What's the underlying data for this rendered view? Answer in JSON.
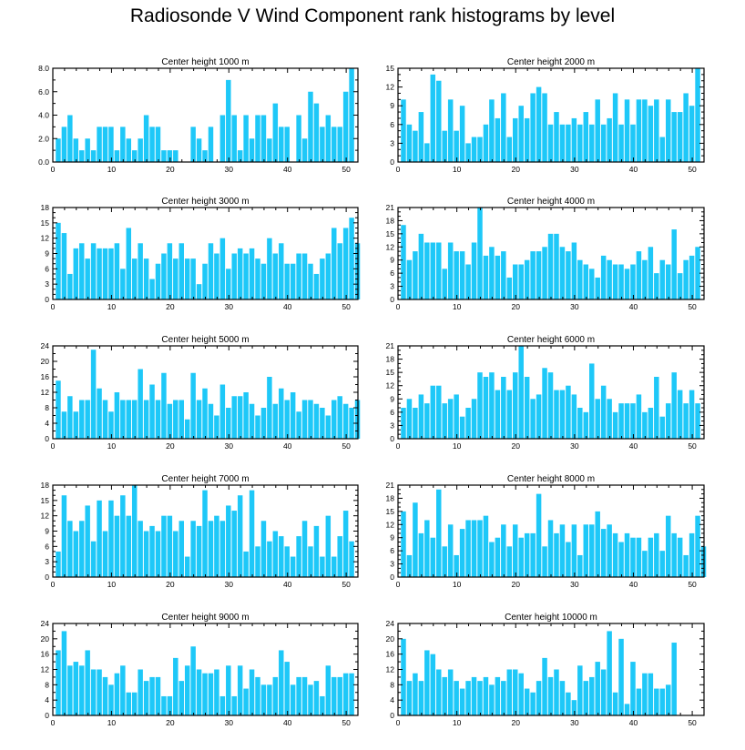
{
  "figure": {
    "title": "Radiosonde V Wind Component rank histograms by level"
  },
  "chart_data": [
    {
      "type": "bar",
      "title": "Center height 1000 m",
      "xlim": [
        0,
        52
      ],
      "ylim": [
        0,
        8
      ],
      "xticks": [
        "0",
        "10",
        "20",
        "30",
        "40",
        "50"
      ],
      "yticks": [
        "0.0",
        "2.0",
        "4.0",
        "6.0",
        "8.0"
      ],
      "ytick_values": [
        0,
        2,
        4,
        6,
        8
      ],
      "color": "#1EC8F8",
      "values": [
        2,
        3,
        4,
        2,
        1,
        2,
        1,
        3,
        3,
        3,
        1,
        3,
        2,
        1,
        2,
        4,
        3,
        3,
        1,
        1,
        1,
        0,
        0,
        3,
        2,
        1,
        3,
        0,
        4,
        7,
        4,
        1,
        4,
        2,
        4,
        4,
        2,
        5,
        3,
        3,
        0,
        4,
        2,
        6,
        5,
        3,
        4,
        3,
        3,
        6,
        8
      ]
    },
    {
      "type": "bar",
      "title": "Center height 2000 m",
      "xlim": [
        0,
        52
      ],
      "ylim": [
        0,
        15
      ],
      "xticks": [
        "0",
        "10",
        "20",
        "30",
        "40",
        "50"
      ],
      "yticks": [
        "0",
        "3",
        "6",
        "9",
        "12",
        "15"
      ],
      "ytick_values": [
        0,
        3,
        6,
        9,
        12,
        15
      ],
      "color": "#1EC8F8",
      "values": [
        10,
        6,
        5,
        8,
        3,
        14,
        13,
        5,
        10,
        5,
        9,
        3,
        4,
        4,
        6,
        10,
        7,
        11,
        4,
        7,
        9,
        7,
        11,
        12,
        11,
        6,
        8,
        6,
        6,
        7,
        6,
        8,
        6,
        10,
        6,
        7,
        11,
        6,
        10,
        6,
        10,
        10,
        9,
        10,
        4,
        10,
        8,
        8,
        11,
        9,
        15
      ]
    },
    {
      "type": "bar",
      "title": "Center height 3000 m",
      "xlim": [
        0,
        52
      ],
      "ylim": [
        0,
        18
      ],
      "xticks": [
        "0",
        "10",
        "20",
        "30",
        "40",
        "50"
      ],
      "yticks": [
        "0",
        "3",
        "6",
        "9",
        "12",
        "15",
        "18"
      ],
      "ytick_values": [
        0,
        3,
        6,
        9,
        12,
        15,
        18
      ],
      "color": "#1EC8F8",
      "values": [
        15,
        13,
        5,
        10,
        11,
        8,
        11,
        10,
        10,
        10,
        11,
        6,
        14,
        8,
        11,
        8,
        4,
        7,
        9,
        11,
        8,
        11,
        8,
        8,
        3,
        7,
        11,
        9,
        12,
        6,
        9,
        10,
        9,
        10,
        8,
        7,
        12,
        9,
        11,
        7,
        7,
        9,
        9,
        7,
        5,
        8,
        9,
        14,
        11,
        14,
        16,
        11
      ]
    },
    {
      "type": "bar",
      "title": "Center height 4000 m",
      "xlim": [
        0,
        52
      ],
      "ylim": [
        0,
        21
      ],
      "xticks": [
        "0",
        "10",
        "20",
        "30",
        "40",
        "50"
      ],
      "yticks": [
        "0",
        "3",
        "6",
        "9",
        "12",
        "15",
        "18",
        "21"
      ],
      "ytick_values": [
        0,
        3,
        6,
        9,
        12,
        15,
        18,
        21
      ],
      "color": "#1EC8F8",
      "values": [
        17,
        9,
        11,
        15,
        13,
        13,
        13,
        7,
        13,
        11,
        11,
        8,
        13,
        21,
        10,
        12,
        10,
        11,
        5,
        8,
        8,
        9,
        11,
        11,
        12,
        15,
        15,
        12,
        11,
        13,
        9,
        8,
        7,
        5,
        10,
        9,
        8,
        8,
        7,
        8,
        11,
        9,
        12,
        6,
        9,
        8,
        16,
        6,
        9,
        10,
        12
      ]
    },
    {
      "type": "bar",
      "title": "Center height 5000 m",
      "xlim": [
        0,
        52
      ],
      "ylim": [
        0,
        24
      ],
      "xticks": [
        "0",
        "10",
        "20",
        "30",
        "40",
        "50"
      ],
      "yticks": [
        "0",
        "4",
        "8",
        "12",
        "16",
        "20",
        "24"
      ],
      "ytick_values": [
        0,
        4,
        8,
        12,
        16,
        20,
        24
      ],
      "color": "#1EC8F8",
      "values": [
        15,
        7,
        11,
        7,
        10,
        10,
        23,
        13,
        10,
        7,
        12,
        10,
        10,
        10,
        18,
        10,
        14,
        10,
        17,
        9,
        10,
        10,
        5,
        17,
        10,
        13,
        9,
        6,
        14,
        8,
        11,
        11,
        12,
        9,
        6,
        8,
        16,
        9,
        13,
        10,
        12,
        7,
        10,
        10,
        9,
        8,
        6,
        10,
        11,
        9,
        8,
        10
      ]
    },
    {
      "type": "bar",
      "title": "Center height 6000 m",
      "xlim": [
        0,
        52
      ],
      "ylim": [
        0,
        21
      ],
      "xticks": [
        "0",
        "10",
        "20",
        "30",
        "40",
        "50"
      ],
      "yticks": [
        "0",
        "3",
        "6",
        "9",
        "12",
        "15",
        "18",
        "21"
      ],
      "ytick_values": [
        0,
        3,
        6,
        9,
        12,
        15,
        18,
        21
      ],
      "color": "#1EC8F8",
      "values": [
        7,
        9,
        7,
        10,
        8,
        12,
        12,
        8,
        9,
        10,
        5,
        7,
        9,
        15,
        14,
        15,
        11,
        14,
        11,
        15,
        21,
        14,
        9,
        10,
        16,
        15,
        11,
        11,
        12,
        10,
        7,
        6,
        17,
        9,
        12,
        9,
        6,
        8,
        8,
        8,
        10,
        6,
        7,
        14,
        5,
        8,
        15,
        11,
        8,
        11,
        8
      ]
    },
    {
      "type": "bar",
      "title": "Center height 7000 m",
      "xlim": [
        0,
        52
      ],
      "ylim": [
        0,
        18
      ],
      "xticks": [
        "0",
        "10",
        "20",
        "30",
        "40",
        "50"
      ],
      "yticks": [
        "0",
        "3",
        "6",
        "9",
        "12",
        "15",
        "18"
      ],
      "ytick_values": [
        0,
        3,
        6,
        9,
        12,
        15,
        18
      ],
      "color": "#1EC8F8",
      "values": [
        5,
        16,
        11,
        9,
        11,
        14,
        7,
        15,
        9,
        15,
        12,
        16,
        12,
        18,
        11,
        9,
        10,
        9,
        12,
        12,
        9,
        11,
        4,
        11,
        10,
        17,
        11,
        12,
        11,
        14,
        13,
        16,
        5,
        17,
        6,
        11,
        7,
        9,
        8,
        6,
        4,
        8,
        11,
        6,
        10,
        4,
        12,
        4,
        8,
        13,
        7
      ]
    },
    {
      "type": "bar",
      "title": "Center height 8000 m",
      "xlim": [
        0,
        52
      ],
      "ylim": [
        0,
        21
      ],
      "xticks": [
        "0",
        "10",
        "20",
        "30",
        "40",
        "50"
      ],
      "yticks": [
        "0",
        "3",
        "6",
        "9",
        "12",
        "15",
        "18",
        "21"
      ],
      "ytick_values": [
        0,
        3,
        6,
        9,
        12,
        15,
        18,
        21
      ],
      "color": "#1EC8F8",
      "values": [
        15,
        5,
        17,
        10,
        13,
        9,
        20,
        7,
        12,
        5,
        11,
        13,
        13,
        13,
        14,
        8,
        9,
        12,
        7,
        12,
        9,
        10,
        10,
        19,
        7,
        13,
        10,
        12,
        8,
        12,
        5,
        12,
        12,
        15,
        11,
        12,
        10,
        8,
        10,
        9,
        9,
        6,
        9,
        10,
        6,
        14,
        10,
        9,
        5,
        10,
        14,
        7
      ]
    },
    {
      "type": "bar",
      "title": "Center height 9000 m",
      "xlim": [
        0,
        52
      ],
      "ylim": [
        0,
        24
      ],
      "xticks": [
        "0",
        "10",
        "20",
        "30",
        "40",
        "50"
      ],
      "yticks": [
        "0",
        "4",
        "8",
        "12",
        "16",
        "20",
        "24"
      ],
      "ytick_values": [
        0,
        4,
        8,
        12,
        16,
        20,
        24
      ],
      "color": "#1EC8F8",
      "values": [
        17,
        22,
        13,
        14,
        13,
        17,
        12,
        12,
        10,
        8,
        11,
        13,
        6,
        6,
        12,
        9,
        10,
        10,
        5,
        5,
        15,
        9,
        13,
        18,
        12,
        11,
        11,
        12,
        5,
        13,
        5,
        13,
        7,
        12,
        10,
        8,
        8,
        10,
        17,
        14,
        8,
        10,
        10,
        8,
        9,
        5,
        13,
        10,
        10,
        11,
        11
      ]
    },
    {
      "type": "bar",
      "title": "Center height 10000 m",
      "xlim": [
        0,
        52
      ],
      "ylim": [
        0,
        24
      ],
      "xticks": [
        "0",
        "10",
        "20",
        "30",
        "40",
        "50"
      ],
      "yticks": [
        "0",
        "4",
        "8",
        "12",
        "16",
        "20",
        "24"
      ],
      "ytick_values": [
        0,
        4,
        8,
        12,
        16,
        20,
        24
      ],
      "color": "#1EC8F8",
      "values": [
        20,
        9,
        11,
        9,
        17,
        16,
        12,
        10,
        12,
        9,
        7,
        9,
        10,
        9,
        10,
        8,
        10,
        9,
        12,
        12,
        11,
        7,
        6,
        9,
        15,
        10,
        12,
        9,
        6,
        4,
        13,
        9,
        10,
        14,
        12,
        22,
        6,
        20,
        3,
        14,
        7,
        11,
        11,
        7,
        7,
        8,
        19
      ]
    }
  ]
}
